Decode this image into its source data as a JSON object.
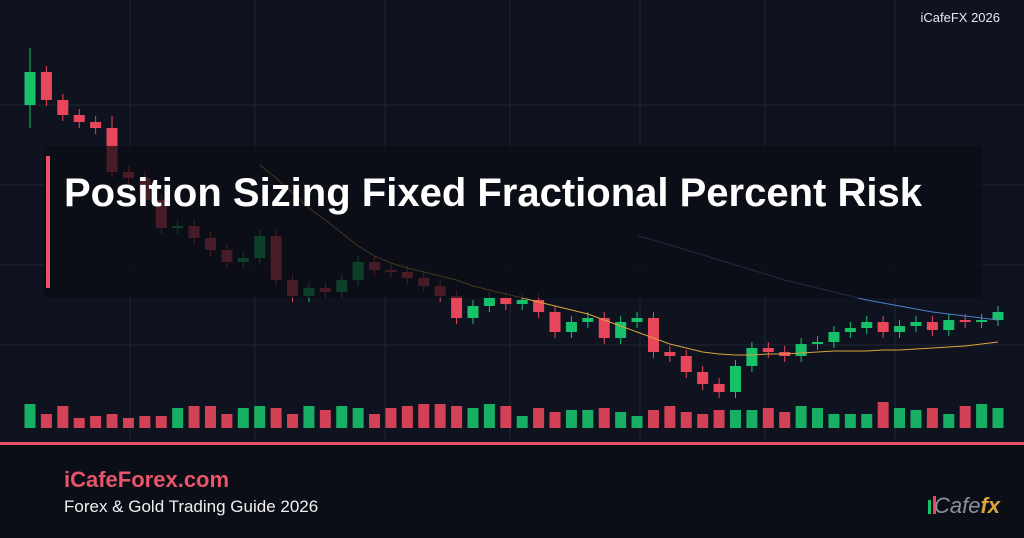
{
  "header": {
    "brand": "iCafeFX 2026"
  },
  "title": "Position Sizing Fixed Fractional Percent Risk",
  "footer": {
    "site": "iCafeForex.com",
    "tagline": "Forex & Gold Trading Guide 2026"
  },
  "logo": {
    "text": "Cafe",
    "accent": "fx"
  },
  "chart_data": {
    "type": "candlestick",
    "ylim": [
      108,
      538
    ],
    "up_color": "#17c16a",
    "down_color": "#e8475b",
    "open": [
      433,
      466,
      438,
      423,
      416,
      410,
      366,
      360,
      338,
      310,
      312,
      300,
      288,
      276,
      280,
      302,
      258,
      242,
      250,
      246,
      258,
      276,
      268,
      266,
      260,
      252,
      242,
      220,
      232,
      240,
      234,
      238,
      226,
      206,
      216,
      220,
      200,
      216,
      220,
      186,
      182,
      166,
      154,
      146,
      172,
      190,
      186,
      182,
      194,
      196,
      206,
      210,
      216,
      206,
      212,
      216,
      208,
      218,
      216,
      218
    ],
    "high": [
      490,
      472,
      444,
      429,
      422,
      422,
      372,
      366,
      344,
      318,
      318,
      306,
      294,
      286,
      308,
      308,
      264,
      256,
      256,
      264,
      282,
      282,
      274,
      272,
      266,
      258,
      248,
      238,
      246,
      246,
      244,
      244,
      232,
      222,
      226,
      226,
      222,
      226,
      226,
      192,
      188,
      172,
      160,
      178,
      196,
      196,
      192,
      200,
      202,
      212,
      216,
      222,
      222,
      218,
      222,
      222,
      224,
      224,
      224,
      232
    ],
    "low": [
      410,
      432,
      417,
      410,
      404,
      360,
      354,
      332,
      304,
      304,
      294,
      282,
      270,
      270,
      274,
      252,
      236,
      236,
      240,
      240,
      252,
      262,
      260,
      254,
      246,
      236,
      214,
      214,
      226,
      228,
      228,
      220,
      200,
      200,
      210,
      194,
      194,
      210,
      180,
      176,
      160,
      148,
      140,
      140,
      166,
      180,
      176,
      176,
      188,
      190,
      200,
      204,
      200,
      200,
      206,
      202,
      202,
      210,
      210,
      212
    ],
    "close": [
      466,
      438,
      423,
      416,
      410,
      366,
      360,
      338,
      310,
      312,
      300,
      288,
      276,
      280,
      302,
      258,
      242,
      250,
      246,
      258,
      276,
      268,
      266,
      260,
      252,
      242,
      220,
      232,
      240,
      234,
      238,
      226,
      206,
      216,
      220,
      200,
      216,
      220,
      186,
      182,
      166,
      154,
      146,
      172,
      190,
      186,
      182,
      194,
      196,
      206,
      210,
      216,
      206,
      212,
      216,
      208,
      218,
      216,
      218,
      226
    ],
    "volume": [
      24,
      14,
      22,
      10,
      12,
      14,
      10,
      12,
      12,
      20,
      22,
      22,
      14,
      20,
      22,
      20,
      14,
      22,
      18,
      22,
      20,
      14,
      20,
      22,
      24,
      24,
      22,
      20,
      24,
      22,
      12,
      20,
      16,
      18,
      18,
      20,
      16,
      12,
      18,
      22,
      16,
      14,
      18,
      18,
      18,
      20,
      16,
      22,
      20,
      14,
      14,
      14,
      26,
      20,
      18,
      20,
      14,
      22,
      24,
      20
    ],
    "series": [
      {
        "color": "#d9a43a",
        "values": [
          null,
          null,
          null,
          null,
          null,
          null,
          null,
          null,
          null,
          null,
          null,
          null,
          null,
          null,
          373,
          360,
          345,
          330,
          318,
          305,
          292,
          282,
          275,
          270,
          266,
          262,
          258,
          252,
          248,
          244,
          240,
          236,
          232,
          228,
          224,
          218,
          212,
          206,
          200,
          194,
          190,
          186,
          184,
          183,
          183,
          184,
          184,
          185,
          186,
          187,
          187,
          187,
          188,
          188,
          189,
          190,
          191,
          192,
          194,
          196
        ]
      },
      {
        "color": "#4f7fc4",
        "values": [
          null,
          null,
          null,
          null,
          null,
          null,
          null,
          null,
          null,
          null,
          null,
          null,
          null,
          null,
          null,
          null,
          null,
          null,
          null,
          null,
          null,
          null,
          null,
          null,
          null,
          null,
          null,
          null,
          null,
          null,
          null,
          null,
          null,
          null,
          null,
          null,
          null,
          302,
          298,
          293,
          288,
          283,
          278,
          273,
          268,
          263,
          258,
          254,
          250,
          246,
          242,
          238,
          235,
          232,
          229,
          226,
          224,
          222,
          220,
          218
        ]
      }
    ]
  }
}
